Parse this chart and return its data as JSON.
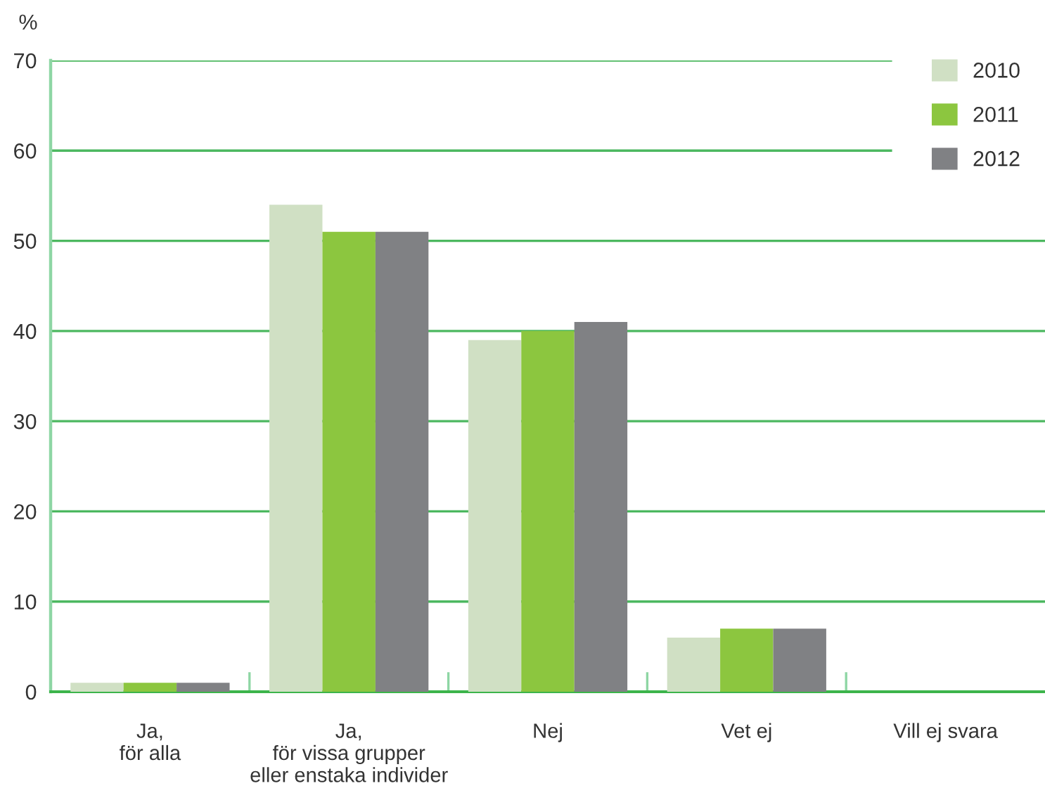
{
  "chart_data": {
    "type": "bar",
    "ylabel": "%",
    "categories": [
      "Ja,\nför alla",
      "Ja,\nför vissa grupper\neller enstaka individer",
      "Nej",
      "Vet ej",
      "Vill ej svara"
    ],
    "series": [
      {
        "name": "2010",
        "color": "#d0e0c4",
        "values": [
          1,
          54,
          39,
          6,
          0
        ]
      },
      {
        "name": "2011",
        "color": "#8cc63f",
        "values": [
          1,
          51,
          40,
          7,
          0
        ]
      },
      {
        "name": "2012",
        "color": "#808184",
        "values": [
          1,
          51,
          41,
          7,
          0
        ]
      }
    ],
    "ylim": [
      0,
      70
    ],
    "yticks": [
      0,
      10,
      20,
      30,
      40,
      50,
      60,
      70
    ],
    "grid": "y",
    "legend": "top right"
  }
}
